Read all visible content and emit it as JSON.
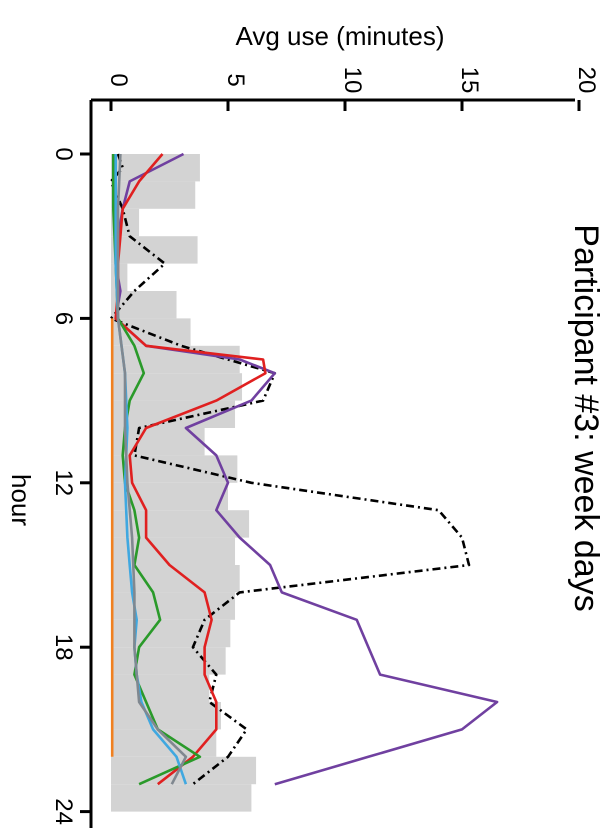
{
  "chart_data": {
    "type": "line",
    "title": "Participant #3: week days",
    "xlabel": "hour",
    "ylabel": "Avg use (minutes)",
    "xlim": [
      0,
      24
    ],
    "ylim": [
      0,
      20
    ],
    "xticks": [
      "0",
      "6",
      "12",
      "18",
      "24"
    ],
    "yticks": [
      "0",
      "5",
      "10",
      "15",
      "20"
    ],
    "background_bars": {
      "color": "#d3d3d3",
      "x": [
        0,
        1,
        2,
        3,
        4,
        5,
        6,
        7,
        8,
        9,
        10,
        11,
        12,
        13,
        14,
        15,
        16,
        17,
        18,
        19,
        20,
        21,
        22,
        23
      ],
      "values": [
        3.8,
        3.6,
        1.2,
        3.7,
        0.7,
        2.8,
        3.4,
        5.5,
        5.6,
        5.3,
        4.0,
        5.4,
        5.0,
        5.9,
        5.3,
        5.5,
        5.3,
        5.1,
        4.9,
        4.2,
        4.7,
        4.5,
        6.2,
        6.0
      ]
    },
    "series": [
      {
        "color": "#000000",
        "dash": "8,4,2,4",
        "x": [
          0,
          0.5,
          1,
          2,
          3,
          4,
          5,
          6,
          7,
          8,
          9,
          10,
          11,
          12,
          13,
          14,
          15,
          16,
          17,
          18,
          19,
          20,
          21,
          22,
          23
        ],
        "values": [
          0.3,
          0.5,
          0.0,
          0.5,
          0.8,
          2.3,
          1.0,
          0.0,
          3.0,
          7.0,
          6.5,
          1.2,
          1.0,
          6.0,
          14.0,
          15.0,
          15.3,
          5.5,
          4.0,
          3.5,
          4.5,
          4.2,
          5.8,
          5.0,
          3.5
        ]
      },
      {
        "color": "#7040a0",
        "dash": "",
        "x": [
          0,
          1,
          2,
          3,
          4,
          5,
          6,
          7,
          7.5,
          8,
          9,
          10,
          11,
          12,
          13,
          14,
          15,
          16,
          17,
          18,
          19,
          20,
          21,
          22,
          23
        ],
        "values": [
          3.1,
          0.8,
          0.5,
          0.3,
          0.2,
          0.4,
          0.2,
          1.5,
          5.5,
          7.0,
          6.0,
          3.2,
          4.5,
          5.0,
          4.5,
          5.5,
          6.8,
          7.3,
          10.5,
          11.0,
          11.5,
          16.5,
          15.0,
          11.0,
          7.0
        ]
      },
      {
        "color": "#e02020",
        "dash": "",
        "x": [
          0,
          1,
          2,
          3,
          4,
          5,
          6,
          7,
          7.5,
          8,
          9,
          10,
          11,
          12,
          13,
          14,
          15,
          16,
          17,
          18,
          19,
          20,
          21,
          22,
          23
        ],
        "values": [
          2.2,
          1.2,
          0.5,
          0.4,
          0.3,
          0.3,
          0.2,
          1.5,
          6.5,
          6.6,
          4.5,
          1.5,
          0.8,
          0.9,
          1.5,
          1.5,
          2.5,
          4.0,
          4.3,
          4.0,
          4.0,
          4.5,
          4.5,
          3.5,
          2.0
        ]
      },
      {
        "color": "#2a9a2a",
        "dash": "",
        "x": [
          0,
          2,
          4,
          6,
          7,
          8,
          9,
          10,
          11,
          12,
          13,
          14,
          15,
          16,
          17,
          18,
          19,
          20,
          21,
          22,
          23
        ],
        "values": [
          0.1,
          0.1,
          0.2,
          0.3,
          1.0,
          1.4,
          0.8,
          0.6,
          0.5,
          0.6,
          1.0,
          1.2,
          1.0,
          1.8,
          2.1,
          1.2,
          1.0,
          1.5,
          2.0,
          3.8,
          1.2
        ]
      },
      {
        "color": "#40a8e0",
        "dash": "",
        "x": [
          0,
          2,
          4,
          6,
          8,
          10,
          12,
          14,
          15,
          16,
          17,
          18,
          19,
          20,
          21,
          22,
          23
        ],
        "values": [
          0.2,
          0.2,
          0.2,
          0.3,
          0.6,
          0.7,
          0.6,
          0.7,
          0.8,
          0.9,
          1.1,
          1.0,
          1.1,
          1.3,
          1.8,
          2.8,
          3.2
        ]
      },
      {
        "color": "#808890",
        "dash": "",
        "x": [
          0,
          2,
          4,
          6,
          8,
          10,
          12,
          14,
          16,
          18,
          20,
          21,
          22,
          23
        ],
        "values": [
          0.4,
          0.3,
          0.3,
          0.3,
          0.6,
          0.6,
          0.7,
          0.9,
          1.0,
          1.0,
          1.2,
          2.0,
          3.2,
          2.6
        ]
      },
      {
        "color": "#f08020",
        "dash": "",
        "x": [
          6,
          12,
          18,
          22
        ],
        "values": [
          0.05,
          0.05,
          0.05,
          0.05
        ]
      }
    ]
  }
}
